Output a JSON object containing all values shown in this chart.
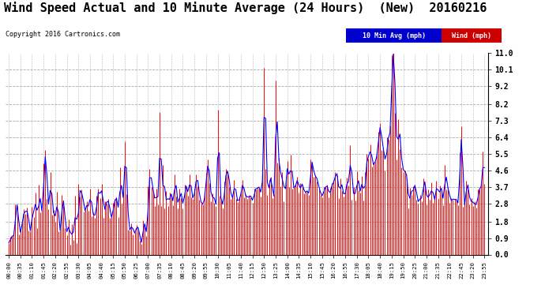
{
  "title": "Wind Speed Actual and 10 Minute Average (24 Hours)  (New)  20160216",
  "copyright": "Copyright 2016 Cartronics.com",
  "legend_label1": "10 Min Avg (mph)",
  "legend_label2": "Wind (mph)",
  "legend_bg1": "#0000cc",
  "legend_bg2": "#cc0000",
  "yticks": [
    0.0,
    0.9,
    1.8,
    2.8,
    3.7,
    4.6,
    5.5,
    6.4,
    7.3,
    8.2,
    9.2,
    10.1,
    11.0
  ],
  "ylim": [
    0.0,
    11.0
  ],
  "background_color": "#ffffff",
  "plot_bg": "#ffffff",
  "grid_color": "#aaaaaa",
  "title_fontsize": 11,
  "tick_label_fontsize": 6,
  "num_points": 288,
  "minutes_per_point": 5,
  "tick_interval_minutes": 35,
  "color_wind": "#ff0000",
  "color_avg": "#0000ff"
}
